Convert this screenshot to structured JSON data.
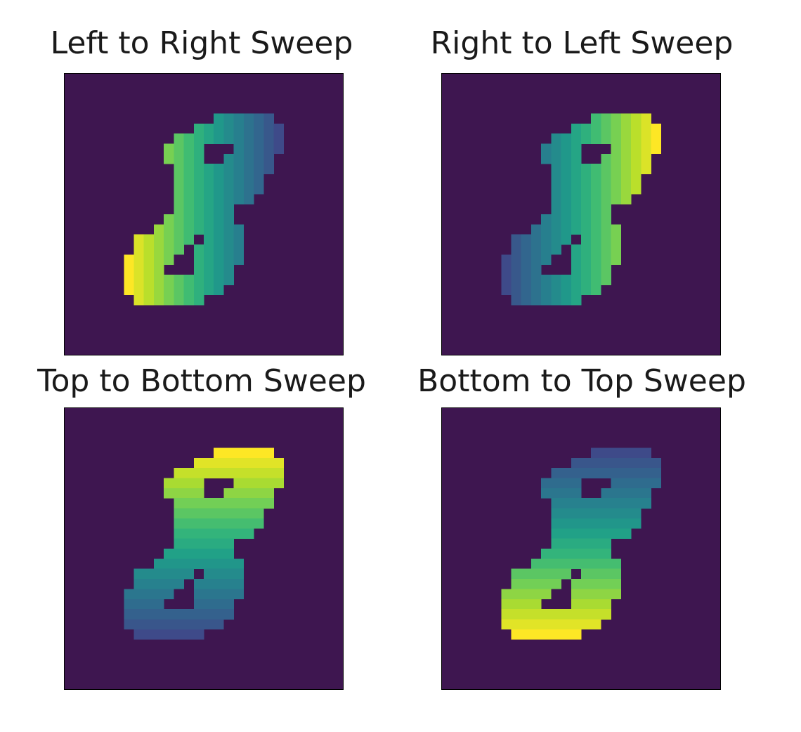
{
  "chart_data": [
    {
      "type": "heatmap",
      "title": "Left to Right Sweep",
      "sweep": "left-to-right"
    },
    {
      "type": "heatmap",
      "title": "Right to Left Sweep",
      "sweep": "right-to-left"
    },
    {
      "type": "heatmap",
      "title": "Top to Bottom Sweep",
      "sweep": "top-to-bottom"
    },
    {
      "type": "heatmap",
      "title": "Bottom to Top Sweep",
      "sweep": "bottom-to-top"
    }
  ],
  "shape": {
    "grid_size": 28,
    "rows": [
      {
        "r": 4,
        "spans": [
          [
            15,
            20
          ]
        ]
      },
      {
        "r": 5,
        "spans": [
          [
            13,
            21
          ]
        ]
      },
      {
        "r": 6,
        "spans": [
          [
            11,
            21
          ]
        ]
      },
      {
        "r": 7,
        "spans": [
          [
            10,
            13
          ],
          [
            17,
            21
          ]
        ]
      },
      {
        "r": 8,
        "spans": [
          [
            10,
            13
          ],
          [
            16,
            20
          ]
        ]
      },
      {
        "r": 9,
        "spans": [
          [
            11,
            20
          ]
        ]
      },
      {
        "r": 10,
        "spans": [
          [
            11,
            19
          ]
        ]
      },
      {
        "r": 11,
        "spans": [
          [
            11,
            19
          ]
        ]
      },
      {
        "r": 12,
        "spans": [
          [
            11,
            18
          ]
        ]
      },
      {
        "r": 13,
        "spans": [
          [
            11,
            16
          ]
        ]
      },
      {
        "r": 14,
        "spans": [
          [
            10,
            16
          ]
        ]
      },
      {
        "r": 15,
        "spans": [
          [
            9,
            17
          ]
        ]
      },
      {
        "r": 16,
        "spans": [
          [
            7,
            12
          ],
          [
            14,
            17
          ]
        ]
      },
      {
        "r": 17,
        "spans": [
          [
            7,
            11
          ],
          [
            13,
            17
          ]
        ]
      },
      {
        "r": 18,
        "spans": [
          [
            6,
            10
          ],
          [
            13,
            17
          ]
        ]
      },
      {
        "r": 19,
        "spans": [
          [
            6,
            9
          ],
          [
            13,
            16
          ]
        ]
      },
      {
        "r": 20,
        "spans": [
          [
            6,
            16
          ]
        ]
      },
      {
        "r": 21,
        "spans": [
          [
            6,
            15
          ]
        ]
      },
      {
        "r": 22,
        "spans": [
          [
            7,
            13
          ]
        ]
      }
    ]
  },
  "colors": {
    "background": "#3e1650",
    "colormap": [
      "#3e4a89",
      "#31688e",
      "#26828e",
      "#1f9e89",
      "#35b779",
      "#6ece58",
      "#b5de2b",
      "#fde725"
    ],
    "frame": "#000000"
  }
}
